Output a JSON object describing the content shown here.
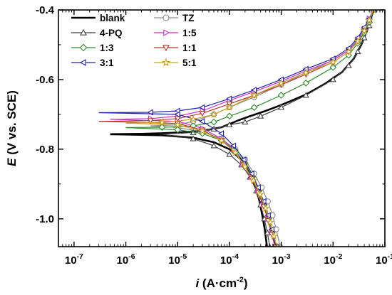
{
  "chart_data": {
    "type": "line",
    "title": "",
    "xlabel": {
      "var": "i",
      "unit_pre": " (A·cm",
      "sup": "-2",
      "unit_post": ")"
    },
    "ylabel": {
      "var": "E",
      "rest": " (V vs. SCE)"
    },
    "x_scale": "log",
    "xlim": [
      5e-08,
      0.1
    ],
    "ylim": [
      -1.08,
      -0.4
    ],
    "x_ticks": [
      {
        "v": 1e-07,
        "base": "10",
        "exp": "-7"
      },
      {
        "v": 1e-06,
        "base": "10",
        "exp": "-6"
      },
      {
        "v": 1e-05,
        "base": "10",
        "exp": "-5"
      },
      {
        "v": 0.0001,
        "base": "10",
        "exp": "-4"
      },
      {
        "v": 0.001,
        "base": "10",
        "exp": "-3"
      },
      {
        "v": 0.01,
        "base": "10",
        "exp": "-2"
      },
      {
        "v": 0.1,
        "base": "10",
        "exp": "-1"
      }
    ],
    "y_ticks": [
      {
        "v": -1.0,
        "label": "-1.0"
      },
      {
        "v": -0.8,
        "label": "-0.8"
      },
      {
        "v": -0.6,
        "label": "-0.6"
      },
      {
        "v": -0.4,
        "label": "-0.4"
      }
    ],
    "grid": false,
    "legend_position": "top-left",
    "series": [
      {
        "name": "blank",
        "color": "#000000",
        "marker": "none",
        "width": 2.6,
        "anodic": [
          [
            5e-07,
            -0.757
          ],
          [
            2e-06,
            -0.756
          ],
          [
            5e-06,
            -0.754
          ],
          [
            1e-05,
            -0.752
          ],
          [
            2e-05,
            -0.749
          ],
          [
            4e-05,
            -0.744
          ],
          [
            7e-05,
            -0.737
          ],
          [
            0.0001,
            -0.728
          ],
          [
            0.00015,
            -0.717
          ],
          [
            0.00025,
            -0.705
          ],
          [
            0.0005,
            -0.69
          ],
          [
            0.001,
            -0.673
          ],
          [
            0.003,
            -0.643
          ],
          [
            0.007,
            -0.612
          ],
          [
            0.015,
            -0.578
          ],
          [
            0.025,
            -0.54
          ],
          [
            0.035,
            -0.5
          ],
          [
            0.045,
            -0.46
          ],
          [
            0.055,
            -0.42
          ],
          [
            0.06,
            -0.4
          ]
        ],
        "cathodic": [
          [
            5e-07,
            -0.757
          ],
          [
            5e-06,
            -0.76
          ],
          [
            2e-05,
            -0.767
          ],
          [
            5e-05,
            -0.78
          ],
          [
            0.0001,
            -0.8
          ],
          [
            0.00017,
            -0.83
          ],
          [
            0.00025,
            -0.87
          ],
          [
            0.00032,
            -0.91
          ],
          [
            0.00038,
            -0.95
          ],
          [
            0.00043,
            -0.99
          ],
          [
            0.00048,
            -1.03
          ],
          [
            0.00053,
            -1.08
          ]
        ]
      },
      {
        "name": "TZ",
        "color": "#8a8a8a",
        "marker": "circle",
        "anodic": [
          [
            3e-06,
            -0.733
          ],
          [
            1e-05,
            -0.73
          ],
          [
            2e-05,
            -0.72
          ],
          [
            5e-05,
            -0.7
          ],
          [
            0.0001,
            -0.68
          ],
          [
            0.0003,
            -0.65
          ],
          [
            0.001,
            -0.615
          ],
          [
            0.003,
            -0.58
          ],
          [
            0.01,
            -0.545
          ],
          [
            0.02,
            -0.515
          ],
          [
            0.03,
            -0.49
          ],
          [
            0.04,
            -0.465
          ],
          [
            0.05,
            -0.435
          ],
          [
            0.06,
            -0.4
          ]
        ],
        "cathodic": [
          [
            3e-06,
            -0.733
          ],
          [
            1e-05,
            -0.738
          ],
          [
            3e-05,
            -0.75
          ],
          [
            7e-05,
            -0.77
          ],
          [
            0.00013,
            -0.8
          ],
          [
            0.0002,
            -0.83
          ],
          [
            0.0003,
            -0.87
          ],
          [
            0.00042,
            -0.91
          ],
          [
            0.00055,
            -0.95
          ],
          [
            0.00068,
            -0.99
          ],
          [
            0.0008,
            -1.03
          ],
          [
            0.00095,
            -1.08
          ]
        ]
      },
      {
        "name": "4-PQ",
        "color": "#404040",
        "marker": "triangle-up",
        "anodic": [
          [
            5e-06,
            -0.757
          ],
          [
            2e-05,
            -0.752
          ],
          [
            5e-05,
            -0.742
          ],
          [
            0.0001,
            -0.73
          ],
          [
            0.0002,
            -0.722
          ],
          [
            0.0004,
            -0.705
          ],
          [
            0.001,
            -0.68
          ],
          [
            0.003,
            -0.645
          ],
          [
            0.01,
            -0.6
          ],
          [
            0.02,
            -0.56
          ],
          [
            0.03,
            -0.52
          ],
          [
            0.04,
            -0.48
          ],
          [
            0.05,
            -0.445
          ],
          [
            0.06,
            -0.4
          ]
        ],
        "cathodic": [
          [
            5e-06,
            -0.757
          ],
          [
            2e-05,
            -0.77
          ],
          [
            5e-05,
            -0.79
          ],
          [
            0.0001,
            -0.815
          ],
          [
            0.00017,
            -0.845
          ],
          [
            0.00025,
            -0.88
          ],
          [
            0.00033,
            -0.92
          ],
          [
            0.0004,
            -0.96
          ],
          [
            0.00047,
            -1.0
          ],
          [
            0.00054,
            -1.04
          ],
          [
            0.0006,
            -1.08
          ]
        ]
      },
      {
        "name": "1:5",
        "color": "#cc33cc",
        "marker": "triangle-right",
        "anodic": [
          [
            5e-07,
            -0.714
          ],
          [
            3e-06,
            -0.712
          ],
          [
            1e-05,
            -0.705
          ],
          [
            3e-05,
            -0.69
          ],
          [
            0.0001,
            -0.66
          ],
          [
            0.0003,
            -0.635
          ],
          [
            0.001,
            -0.605
          ],
          [
            0.003,
            -0.575
          ],
          [
            0.01,
            -0.545
          ],
          [
            0.02,
            -0.515
          ],
          [
            0.03,
            -0.485
          ],
          [
            0.04,
            -0.455
          ],
          [
            0.05,
            -0.425
          ],
          [
            0.06,
            -0.4
          ]
        ],
        "cathodic": [
          [
            5e-07,
            -0.714
          ],
          [
            1e-05,
            -0.72
          ],
          [
            3e-05,
            -0.74
          ],
          [
            7e-05,
            -0.77
          ],
          [
            0.00012,
            -0.8
          ],
          [
            0.00018,
            -0.84
          ],
          [
            0.00026,
            -0.88
          ],
          [
            0.00035,
            -0.92
          ],
          [
            0.00045,
            -0.96
          ],
          [
            0.00055,
            -1.0
          ],
          [
            0.00065,
            -1.04
          ],
          [
            0.00075,
            -1.08
          ]
        ]
      },
      {
        "name": "1:3",
        "color": "#2f8f2f",
        "marker": "diamond",
        "anodic": [
          [
            1e-06,
            -0.738
          ],
          [
            5e-06,
            -0.737
          ],
          [
            2e-05,
            -0.733
          ],
          [
            5e-05,
            -0.722
          ],
          [
            0.0001,
            -0.705
          ],
          [
            0.0003,
            -0.68
          ],
          [
            0.001,
            -0.645
          ],
          [
            0.003,
            -0.61
          ],
          [
            0.01,
            -0.565
          ],
          [
            0.02,
            -0.53
          ],
          [
            0.03,
            -0.495
          ],
          [
            0.04,
            -0.465
          ],
          [
            0.05,
            -0.435
          ],
          [
            0.06,
            -0.4
          ]
        ],
        "cathodic": [
          [
            1e-06,
            -0.738
          ],
          [
            1e-05,
            -0.744
          ],
          [
            3e-05,
            -0.755
          ],
          [
            7e-05,
            -0.775
          ],
          [
            0.00013,
            -0.805
          ],
          [
            0.0002,
            -0.84
          ],
          [
            0.00028,
            -0.88
          ],
          [
            0.00037,
            -0.92
          ],
          [
            0.00047,
            -0.96
          ],
          [
            0.00057,
            -1.0
          ],
          [
            0.00067,
            -1.04
          ],
          [
            0.00077,
            -1.08
          ]
        ]
      },
      {
        "name": "1:1",
        "color": "#b33a2a",
        "marker": "triangle-down",
        "anodic": [
          [
            3e-07,
            -0.72
          ],
          [
            3e-06,
            -0.718
          ],
          [
            1e-05,
            -0.712
          ],
          [
            3e-05,
            -0.697
          ],
          [
            0.0001,
            -0.67
          ],
          [
            0.0003,
            -0.645
          ],
          [
            0.001,
            -0.615
          ],
          [
            0.003,
            -0.585
          ],
          [
            0.01,
            -0.55
          ],
          [
            0.02,
            -0.52
          ],
          [
            0.03,
            -0.49
          ],
          [
            0.04,
            -0.46
          ],
          [
            0.05,
            -0.43
          ],
          [
            0.06,
            -0.4
          ]
        ],
        "cathodic": [
          [
            3e-07,
            -0.72
          ],
          [
            1e-05,
            -0.726
          ],
          [
            3e-05,
            -0.745
          ],
          [
            7e-05,
            -0.775
          ],
          [
            0.00012,
            -0.805
          ],
          [
            0.00019,
            -0.845
          ],
          [
            0.00027,
            -0.885
          ],
          [
            0.00036,
            -0.925
          ],
          [
            0.00046,
            -0.965
          ],
          [
            0.00056,
            -1.005
          ],
          [
            0.00066,
            -1.045
          ],
          [
            0.00076,
            -1.08
          ]
        ]
      },
      {
        "name": "3:1",
        "color": "#2222aa",
        "marker": "triangle-left",
        "anodic": [
          [
            3e-07,
            -0.695
          ],
          [
            3e-06,
            -0.694
          ],
          [
            1e-05,
            -0.69
          ],
          [
            3e-05,
            -0.68
          ],
          [
            0.0001,
            -0.655
          ],
          [
            0.0003,
            -0.63
          ],
          [
            0.001,
            -0.6
          ],
          [
            0.003,
            -0.57
          ],
          [
            0.01,
            -0.54
          ],
          [
            0.02,
            -0.51
          ],
          [
            0.03,
            -0.48
          ],
          [
            0.04,
            -0.45
          ],
          [
            0.05,
            -0.425
          ],
          [
            0.06,
            -0.4
          ]
        ],
        "cathodic": [
          [
            3e-07,
            -0.695
          ],
          [
            1e-05,
            -0.7
          ],
          [
            3e-05,
            -0.72
          ],
          [
            7e-05,
            -0.755
          ],
          [
            0.00012,
            -0.79
          ],
          [
            0.00019,
            -0.83
          ],
          [
            0.00027,
            -0.87
          ],
          [
            0.00036,
            -0.91
          ],
          [
            0.00046,
            -0.95
          ],
          [
            0.00056,
            -0.99
          ],
          [
            0.00066,
            -1.03
          ],
          [
            0.00078,
            -1.08
          ]
        ]
      },
      {
        "name": "5:1",
        "color": "#c9a227",
        "marker": "star",
        "anodic": [
          [
            1e-06,
            -0.725
          ],
          [
            5e-06,
            -0.723
          ],
          [
            2e-05,
            -0.714
          ],
          [
            5e-05,
            -0.7
          ],
          [
            0.0001,
            -0.68
          ],
          [
            0.0003,
            -0.645
          ],
          [
            0.001,
            -0.61
          ],
          [
            0.003,
            -0.58
          ],
          [
            0.01,
            -0.55
          ],
          [
            0.02,
            -0.52
          ],
          [
            0.03,
            -0.49
          ],
          [
            0.04,
            -0.46
          ],
          [
            0.05,
            -0.43
          ],
          [
            0.06,
            -0.4
          ]
        ],
        "cathodic": [
          [
            1e-06,
            -0.725
          ],
          [
            1e-05,
            -0.73
          ],
          [
            3e-05,
            -0.748
          ],
          [
            7e-05,
            -0.775
          ],
          [
            0.00013,
            -0.81
          ],
          [
            0.0002,
            -0.85
          ],
          [
            0.00029,
            -0.89
          ],
          [
            0.00039,
            -0.93
          ],
          [
            0.0005,
            -0.97
          ],
          [
            0.00061,
            -1.01
          ],
          [
            0.00072,
            -1.05
          ],
          [
            0.00083,
            -1.08
          ]
        ]
      }
    ]
  }
}
